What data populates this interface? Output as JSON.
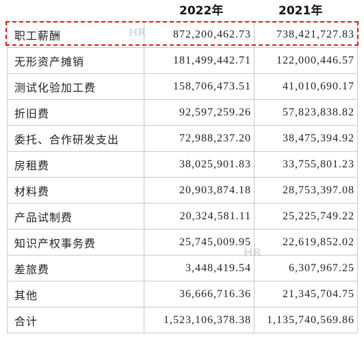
{
  "header": {
    "col_2022": "2022年",
    "col_2021": "2021年"
  },
  "rows": [
    {
      "label": "职工薪酬",
      "v2022": "872,200,462.73",
      "v2021": "738,421,727.83"
    },
    {
      "label": "无形资产摊销",
      "v2022": "181,499,442.71",
      "v2021": "122,000,446.57"
    },
    {
      "label": "测试化验加工费",
      "v2022": "158,706,473.51",
      "v2021": "41,010,690.17"
    },
    {
      "label": "折旧费",
      "v2022": "92,597,259.26",
      "v2021": "57,823,838.82"
    },
    {
      "label": "委托、合作研发支出",
      "v2022": "72,988,237.20",
      "v2021": "38,475,394.92"
    },
    {
      "label": "房租费",
      "v2022": "38,025,901.83",
      "v2021": "33,755,801.23"
    },
    {
      "label": "材料费",
      "v2022": "20,903,874.18",
      "v2021": "28,753,397.08"
    },
    {
      "label": "产品试制费",
      "v2022": "20,324,581.11",
      "v2021": "25,225,749.22"
    },
    {
      "label": "知识产权事务费",
      "v2022": "25,745,009.95",
      "v2021": "22,619,852.02"
    },
    {
      "label": "差旅费",
      "v2022": "3,448,419.54",
      "v2021": "6,307,967.25"
    },
    {
      "label": "其他",
      "v2022": "36,666,716.36",
      "v2021": "21,345,704.75"
    },
    {
      "label": "合计",
      "v2022": "1,523,106,378.38",
      "v2021": "1,135,740,569.86"
    }
  ],
  "highlight_color": "#e01b1b",
  "watermark": "HR"
}
